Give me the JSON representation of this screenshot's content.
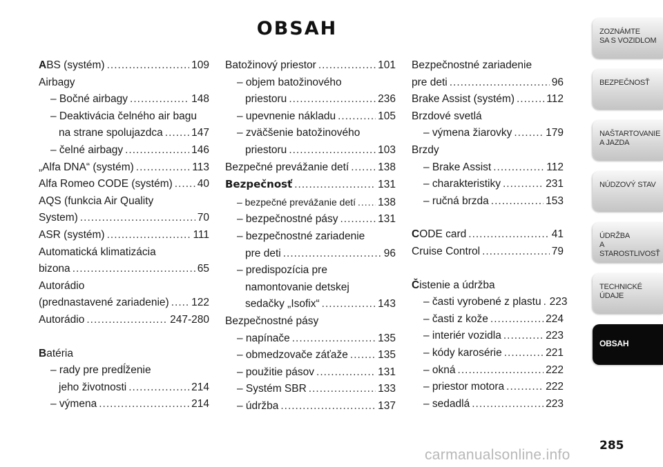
{
  "title": "OBSAH",
  "page_number": "285",
  "watermark": "carmanualsonline.info",
  "sidebar": {
    "tabs": [
      {
        "label": "ZOZNÁMTE\nSA S VOZIDLOM"
      },
      {
        "label": "BEZPEČNOSŤ"
      },
      {
        "label": "NAŠTARTOVANIE\nA JAZDA"
      },
      {
        "label": "NÚDZOVÝ STAV"
      },
      {
        "label": "ÚDRŽBA\nA STAROSTLIVOSŤ"
      },
      {
        "label": "TECHNICKÉ\nÚDAJE"
      },
      {
        "label": "OBSAH"
      }
    ]
  },
  "columns": {
    "col1": [
      {
        "initial": "A",
        "text": "BS (systém)",
        "page": "109"
      },
      {
        "text": "Airbagy",
        "page": ""
      },
      {
        "text": "– Bočné airbagy",
        "page": "148"
      },
      {
        "text": "– Deaktivácia čelného air bagu",
        "page": ""
      },
      {
        "text": "na strane spolujazdca",
        "page": "147"
      },
      {
        "text": "– čelné airbagy",
        "page": "146"
      },
      {
        "text": "„Alfa DNA“ (systém)",
        "page": "113"
      },
      {
        "text": "Alfa Romeo CODE (systém)",
        "page": "40"
      },
      {
        "text": "AQS (funkcia Air Quality",
        "page": ""
      },
      {
        "text": "System)",
        "page": "70"
      },
      {
        "text": "ASR (systém)",
        "page": "111"
      },
      {
        "text": "Automatická klimatizácia",
        "page": ""
      },
      {
        "text": "bizona",
        "page": "65"
      },
      {
        "text": "Autorádio",
        "page": ""
      },
      {
        "text": "(prednastavené zariadenie)",
        "page": "122"
      },
      {
        "text": "Autorádio",
        "page": "247-280"
      },
      {
        "initial": "B",
        "text": "atéria",
        "page": ""
      },
      {
        "text": "– rady pre predĺženie",
        "page": ""
      },
      {
        "text": "jeho životnosti",
        "page": "214"
      },
      {
        "text": "– výmena",
        "page": "214"
      }
    ],
    "col2": [
      {
        "text": "Batožinový priestor",
        "page": "101"
      },
      {
        "text": "– objem batožinového",
        "page": ""
      },
      {
        "text": "priestoru",
        "page": "236"
      },
      {
        "text": "– upevnenie nákladu",
        "page": "105"
      },
      {
        "text": "– zväčšenie batožinového",
        "page": ""
      },
      {
        "text": "priestoru",
        "page": "103"
      },
      {
        "text": "Bezpečné prevážanie detí",
        "page": "138"
      },
      {
        "text": "Bezpečnosť",
        "page": "131"
      },
      {
        "text": "– bezpečné prevážanie detí",
        "page": "138"
      },
      {
        "text": "– bezpečnostné pásy",
        "page": "131"
      },
      {
        "text": "– bezpečnostné zariadenie",
        "page": ""
      },
      {
        "text": "pre deti",
        "page": "96"
      },
      {
        "text": "– predispozícia pre",
        "page": ""
      },
      {
        "text": "namontovanie detskej",
        "page": ""
      },
      {
        "text": "sedačky „Isofix“",
        "page": "143"
      },
      {
        "text": "Bezpečnostné pásy",
        "page": ""
      },
      {
        "text": "– napínače",
        "page": "135"
      },
      {
        "text": "– obmedzovače záťaže",
        "page": "135"
      },
      {
        "text": "– použitie pásov",
        "page": "131"
      },
      {
        "text": "– Systém SBR",
        "page": "133"
      },
      {
        "text": "– údržba",
        "page": "137"
      }
    ],
    "col3": [
      {
        "text": "Bezpečnostné zariadenie",
        "page": ""
      },
      {
        "text": "pre deti",
        "page": "96"
      },
      {
        "text": "Brake Assist (systém)",
        "page": "112"
      },
      {
        "text": "Brzdové svetlá",
        "page": ""
      },
      {
        "text": "– výmena žiarovky",
        "page": "179"
      },
      {
        "text": "Brzdy",
        "page": ""
      },
      {
        "text": "– Brake Assist",
        "page": "112"
      },
      {
        "text": "– charakteristiky",
        "page": "231"
      },
      {
        "text": "– ručná brzda",
        "page": "153"
      },
      {
        "initial": "C",
        "text": "ODE card",
        "page": "41"
      },
      {
        "text": "Cruise Control",
        "page": "79"
      },
      {
        "initial": "Č",
        "text": "istenie a údržba",
        "page": ""
      },
      {
        "text": "– časti vyrobené z plastu",
        "page": "223"
      },
      {
        "text": "– časti z kože",
        "page": "224"
      },
      {
        "text": "– interiér vozidla",
        "page": "223"
      },
      {
        "text": "– kódy karosérie",
        "page": "221"
      },
      {
        "text": "– okná",
        "page": "222"
      },
      {
        "text": "– priestor motora",
        "page": "222"
      },
      {
        "text": "– sedadlá",
        "page": "223"
      }
    ]
  }
}
